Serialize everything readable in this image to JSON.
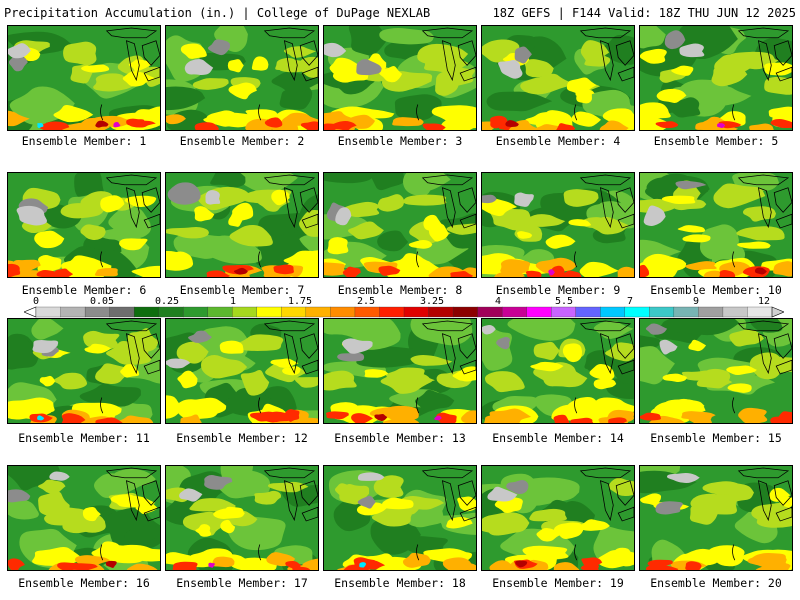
{
  "header": {
    "title_left": "Precipitation Accumulation (in.) | College of DuPage NEXLAB",
    "title_right": "18Z GEFS | F144 Valid: 18Z THU JUN 12 2025"
  },
  "members": [
    {
      "label": "Ensemble Member: 1"
    },
    {
      "label": "Ensemble Member: 2"
    },
    {
      "label": "Ensemble Member: 3"
    },
    {
      "label": "Ensemble Member: 4"
    },
    {
      "label": "Ensemble Member: 5"
    },
    {
      "label": "Ensemble Member: 6"
    },
    {
      "label": "Ensemble Member: 7"
    },
    {
      "label": "Ensemble Member: 8"
    },
    {
      "label": "Ensemble Member: 9"
    },
    {
      "label": "Ensemble Member: 10"
    },
    {
      "label": "Ensemble Member: 11"
    },
    {
      "label": "Ensemble Member: 12"
    },
    {
      "label": "Ensemble Member: 13"
    },
    {
      "label": "Ensemble Member: 14"
    },
    {
      "label": "Ensemble Member: 15"
    },
    {
      "label": "Ensemble Member: 16"
    },
    {
      "label": "Ensemble Member: 17"
    },
    {
      "label": "Ensemble Member: 18"
    },
    {
      "label": "Ensemble Member: 19"
    },
    {
      "label": "Ensemble Member: 20"
    }
  ],
  "colorbar": {
    "tick_labels": [
      "0",
      "0.05",
      "0.25",
      "1",
      "1.75",
      "2.5",
      "3.25",
      "4",
      "5.5",
      "7",
      "9",
      "12"
    ],
    "colors": [
      "#d9d9d9",
      "#b4b4b4",
      "#8c8c8c",
      "#6e6e6e",
      "#0f6e0f",
      "#207f20",
      "#2e9a2e",
      "#5cb82e",
      "#a6d81e",
      "#ffff00",
      "#ffd700",
      "#ffb000",
      "#ff8c00",
      "#ff5a00",
      "#ff1e00",
      "#e00000",
      "#b40000",
      "#8c0000",
      "#a0005a",
      "#c80096",
      "#ff00ff",
      "#c864ff",
      "#6464ff",
      "#00c8ff",
      "#00ffff",
      "#3cc8c8",
      "#78b4b4",
      "#a0a0a0",
      "#c8c8c8",
      "#e6e6e6"
    ]
  },
  "map_colors": {
    "dark_green": "#207f20",
    "green": "#2e9a2e",
    "light_green": "#6cc43a",
    "yellow_green": "#b6dc1e",
    "yellow": "#ffff00",
    "orange": "#ffb000",
    "red": "#ff2a00",
    "dark_red": "#b40000",
    "magenta": "#e000c8",
    "cyan": "#00e6ff",
    "gray": "#8c8c8c",
    "light_gray": "#c8c8c8"
  }
}
